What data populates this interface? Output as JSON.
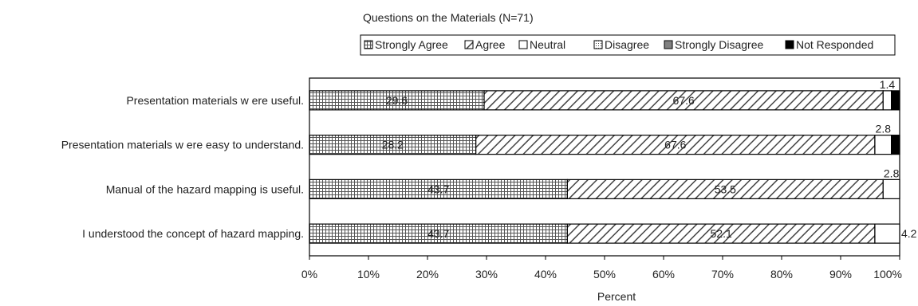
{
  "chart_data": {
    "type": "bar",
    "stacked": true,
    "orientation": "horizontal",
    "title": "Questions on the Materials (N=71)",
    "xlabel": "Percent",
    "ylabel": "",
    "xlim": [
      0,
      100
    ],
    "x_ticks": [
      "0%",
      "10%",
      "20%",
      "30%",
      "40%",
      "50%",
      "60%",
      "70%",
      "80%",
      "90%",
      "100%"
    ],
    "legend_position": "top",
    "categories": [
      "Presentation materials w ere useful.",
      "Presentation materials w ere easy to understand.",
      "Manual of the hazard mapping is useful.",
      "I understood the concept of hazard mapping."
    ],
    "series": [
      {
        "name": "Strongly Agree",
        "pattern": "grid",
        "values": [
          29.6,
          28.2,
          43.7,
          43.7
        ],
        "labels": [
          "29.6",
          "28.2",
          "43.7",
          "43.7"
        ]
      },
      {
        "name": "Agree",
        "pattern": "diagonal",
        "values": [
          67.6,
          67.6,
          53.5,
          52.1
        ],
        "labels": [
          "67.6",
          "67.6",
          "53.5",
          "52.1"
        ]
      },
      {
        "name": "Neutral",
        "pattern": "white",
        "values": [
          1.4,
          2.8,
          2.8,
          4.2
        ],
        "labels": [
          "1.4",
          "2.8",
          "2.8",
          "4.2"
        ]
      },
      {
        "name": "Disagree",
        "pattern": "dots",
        "values": [
          0,
          0,
          0,
          0
        ],
        "labels": [
          "",
          "",
          "",
          ""
        ]
      },
      {
        "name": "Strongly Disagree",
        "pattern": "gray",
        "values": [
          0,
          0,
          0,
          0
        ],
        "labels": [
          "",
          "",
          "",
          ""
        ]
      },
      {
        "name": "Not Responded",
        "pattern": "black",
        "values": [
          1.4,
          1.4,
          0,
          0
        ],
        "labels": [
          "",
          "",
          "",
          ""
        ]
      }
    ]
  }
}
